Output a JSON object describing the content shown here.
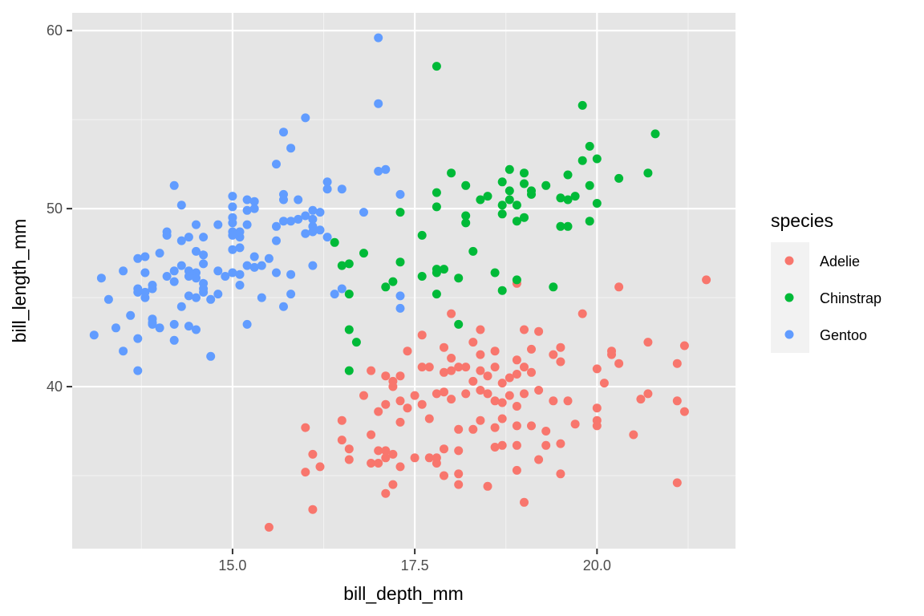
{
  "chart_data": {
    "type": "scatter",
    "title": "",
    "xlabel": "bill_depth_mm",
    "ylabel": "bill_length_mm",
    "xlim": [
      12.8,
      21.9
    ],
    "ylim": [
      30.9,
      61.0
    ],
    "x_ticks": [
      15.0,
      17.5,
      20.0
    ],
    "x_tick_labels": [
      "15.0",
      "17.5",
      "20.0"
    ],
    "y_ticks": [
      40,
      50,
      60
    ],
    "y_tick_labels": [
      "40",
      "50",
      "60"
    ],
    "x_minor_ticks": [
      13.75,
      16.25,
      18.75,
      21.25
    ],
    "y_minor_ticks": [
      35,
      45,
      55
    ],
    "grid": true,
    "panel_background": "#e5e5e5",
    "legend": {
      "title": "species",
      "position": "right"
    },
    "series": [
      {
        "name": "Adelie",
        "color": "#f8766d",
        "points": [
          [
            15.5,
            32.1
          ],
          [
            16.1,
            33.1
          ],
          [
            19.0,
            33.5
          ],
          [
            17.1,
            34.0
          ],
          [
            17.2,
            34.5
          ],
          [
            18.5,
            34.4
          ],
          [
            18.1,
            34.5
          ],
          [
            21.1,
            34.6
          ],
          [
            17.9,
            35.0
          ],
          [
            18.9,
            35.3
          ],
          [
            16.0,
            35.2
          ],
          [
            16.2,
            35.5
          ],
          [
            17.3,
            35.5
          ],
          [
            18.1,
            35.1
          ],
          [
            19.5,
            35.1
          ],
          [
            17.8,
            35.7
          ],
          [
            16.6,
            35.9
          ],
          [
            16.9,
            35.7
          ],
          [
            17.0,
            35.7
          ],
          [
            17.1,
            36.0
          ],
          [
            17.2,
            36.2
          ],
          [
            17.5,
            36.0
          ],
          [
            17.7,
            36.0
          ],
          [
            17.8,
            36.0
          ],
          [
            19.2,
            35.9
          ],
          [
            16.6,
            36.5
          ],
          [
            16.5,
            37.0
          ],
          [
            17.0,
            36.4
          ],
          [
            17.1,
            36.4
          ],
          [
            17.9,
            36.5
          ],
          [
            18.1,
            36.4
          ],
          [
            18.6,
            36.6
          ],
          [
            18.7,
            36.7
          ],
          [
            18.9,
            36.7
          ],
          [
            19.3,
            36.7
          ],
          [
            19.5,
            36.8
          ],
          [
            20.5,
            37.3
          ],
          [
            16.1,
            36.2
          ],
          [
            16.5,
            38.1
          ],
          [
            16.9,
            37.3
          ],
          [
            17.3,
            38.0
          ],
          [
            17.0,
            38.6
          ],
          [
            17.4,
            38.8
          ],
          [
            17.6,
            39.0
          ],
          [
            17.7,
            38.2
          ],
          [
            18.1,
            37.6
          ],
          [
            18.3,
            37.6
          ],
          [
            18.4,
            38.1
          ],
          [
            18.6,
            37.7
          ],
          [
            18.7,
            38.2
          ],
          [
            18.9,
            37.8
          ],
          [
            19.1,
            37.8
          ],
          [
            19.3,
            37.5
          ],
          [
            19.7,
            37.9
          ],
          [
            20.0,
            38.1
          ],
          [
            20.0,
            37.8
          ],
          [
            16.0,
            37.7
          ],
          [
            16.8,
            39.5
          ],
          [
            17.1,
            39.0
          ],
          [
            17.2,
            40.0
          ],
          [
            17.3,
            39.2
          ],
          [
            17.5,
            39.5
          ],
          [
            17.8,
            39.6
          ],
          [
            17.9,
            39.7
          ],
          [
            18.0,
            39.3
          ],
          [
            18.2,
            39.6
          ],
          [
            18.4,
            39.8
          ],
          [
            18.5,
            39.6
          ],
          [
            18.6,
            39.2
          ],
          [
            18.7,
            39.1
          ],
          [
            18.8,
            39.5
          ],
          [
            18.9,
            38.9
          ],
          [
            19.0,
            39.6
          ],
          [
            19.2,
            39.8
          ],
          [
            19.4,
            39.2
          ],
          [
            19.6,
            39.2
          ],
          [
            20.0,
            38.8
          ],
          [
            20.6,
            39.3
          ],
          [
            20.7,
            39.6
          ],
          [
            21.1,
            39.2
          ],
          [
            21.2,
            38.6
          ],
          [
            16.9,
            40.9
          ],
          [
            17.1,
            40.6
          ],
          [
            17.2,
            40.3
          ],
          [
            17.3,
            40.6
          ],
          [
            17.6,
            41.1
          ],
          [
            17.7,
            41.1
          ],
          [
            17.9,
            40.8
          ],
          [
            18.0,
            40.9
          ],
          [
            18.1,
            41.1
          ],
          [
            18.2,
            41.1
          ],
          [
            18.3,
            40.3
          ],
          [
            18.4,
            40.9
          ],
          [
            18.5,
            40.6
          ],
          [
            18.6,
            41.1
          ],
          [
            18.7,
            40.2
          ],
          [
            18.8,
            40.5
          ],
          [
            18.9,
            40.7
          ],
          [
            19.0,
            41.1
          ],
          [
            19.1,
            40.8
          ],
          [
            19.5,
            41.4
          ],
          [
            20.0,
            41.0
          ],
          [
            20.1,
            40.2
          ],
          [
            20.2,
            41.8
          ],
          [
            20.3,
            41.3
          ],
          [
            21.1,
            41.3
          ],
          [
            17.4,
            42.0
          ],
          [
            17.9,
            42.2
          ],
          [
            18.0,
            41.6
          ],
          [
            18.3,
            42.5
          ],
          [
            18.4,
            41.8
          ],
          [
            18.6,
            42.0
          ],
          [
            18.9,
            41.5
          ],
          [
            19.1,
            42.1
          ],
          [
            19.4,
            41.8
          ],
          [
            19.5,
            42.2
          ],
          [
            20.2,
            42.0
          ],
          [
            20.7,
            42.5
          ],
          [
            21.2,
            42.3
          ],
          [
            18.0,
            44.1
          ],
          [
            18.4,
            43.2
          ],
          [
            19.0,
            43.2
          ],
          [
            19.2,
            43.1
          ],
          [
            19.8,
            44.1
          ],
          [
            18.9,
            45.8
          ],
          [
            17.6,
            42.9
          ],
          [
            20.3,
            45.6
          ],
          [
            21.5,
            46.0
          ]
        ]
      },
      {
        "name": "Chinstrap",
        "color": "#00ba38",
        "points": [
          [
            17.8,
            58.0
          ],
          [
            19.8,
            55.8
          ],
          [
            20.8,
            54.2
          ],
          [
            19.9,
            53.5
          ],
          [
            19.8,
            52.7
          ],
          [
            20.0,
            52.8
          ],
          [
            20.7,
            52.0
          ],
          [
            20.3,
            51.7
          ],
          [
            18.8,
            52.2
          ],
          [
            19.0,
            52.0
          ],
          [
            18.7,
            51.5
          ],
          [
            18.2,
            51.3
          ],
          [
            18.0,
            52.0
          ],
          [
            19.0,
            51.4
          ],
          [
            19.1,
            51.0
          ],
          [
            19.3,
            51.3
          ],
          [
            19.6,
            51.9
          ],
          [
            19.9,
            51.3
          ],
          [
            19.7,
            50.7
          ],
          [
            19.5,
            50.6
          ],
          [
            19.6,
            50.5
          ],
          [
            19.1,
            50.8
          ],
          [
            18.9,
            50.2
          ],
          [
            18.8,
            50.5
          ],
          [
            18.7,
            50.2
          ],
          [
            18.5,
            50.7
          ],
          [
            18.4,
            50.5
          ],
          [
            17.8,
            50.9
          ],
          [
            17.8,
            50.1
          ],
          [
            18.2,
            49.6
          ],
          [
            18.2,
            49.2
          ],
          [
            18.7,
            49.7
          ],
          [
            18.9,
            49.3
          ],
          [
            19.0,
            49.5
          ],
          [
            17.3,
            49.8
          ],
          [
            19.5,
            49.0
          ],
          [
            19.6,
            49.0
          ],
          [
            19.9,
            49.3
          ],
          [
            20.0,
            50.3
          ],
          [
            18.8,
            51.0
          ],
          [
            17.6,
            48.5
          ],
          [
            16.4,
            48.1
          ],
          [
            16.8,
            47.5
          ],
          [
            17.3,
            47.0
          ],
          [
            16.5,
            46.8
          ],
          [
            16.6,
            46.9
          ],
          [
            16.6,
            45.2
          ],
          [
            17.1,
            45.6
          ],
          [
            17.2,
            45.9
          ],
          [
            17.6,
            46.2
          ],
          [
            17.8,
            46.6
          ],
          [
            17.9,
            46.6
          ],
          [
            17.8,
            46.4
          ],
          [
            18.1,
            46.1
          ],
          [
            18.3,
            47.6
          ],
          [
            18.6,
            46.4
          ],
          [
            18.9,
            46.0
          ],
          [
            18.7,
            45.4
          ],
          [
            17.8,
            45.2
          ],
          [
            16.6,
            43.2
          ],
          [
            16.7,
            42.5
          ],
          [
            16.6,
            40.9
          ],
          [
            18.1,
            43.5
          ],
          [
            19.4,
            45.6
          ]
        ]
      },
      {
        "name": "Gentoo",
        "color": "#619cff",
        "points": [
          [
            13.1,
            42.9
          ],
          [
            13.3,
            44.9
          ],
          [
            13.2,
            46.1
          ],
          [
            13.4,
            43.3
          ],
          [
            13.5,
            46.5
          ],
          [
            13.5,
            42.0
          ],
          [
            13.6,
            44.0
          ],
          [
            13.7,
            45.5
          ],
          [
            13.7,
            45.3
          ],
          [
            13.7,
            42.7
          ],
          [
            13.7,
            47.2
          ],
          [
            13.7,
            40.9
          ],
          [
            13.8,
            45.3
          ],
          [
            13.8,
            47.3
          ],
          [
            13.8,
            46.4
          ],
          [
            13.8,
            45.0
          ],
          [
            13.9,
            45.5
          ],
          [
            13.9,
            45.7
          ],
          [
            13.9,
            43.8
          ],
          [
            13.9,
            43.6
          ],
          [
            13.9,
            43.5
          ],
          [
            14.0,
            43.3
          ],
          [
            14.0,
            47.5
          ],
          [
            14.1,
            46.2
          ],
          [
            14.1,
            48.7
          ],
          [
            14.1,
            48.5
          ],
          [
            14.2,
            45.9
          ],
          [
            14.2,
            46.5
          ],
          [
            14.2,
            51.3
          ],
          [
            14.2,
            43.5
          ],
          [
            14.2,
            42.6
          ],
          [
            14.3,
            46.8
          ],
          [
            14.3,
            48.2
          ],
          [
            14.3,
            50.2
          ],
          [
            14.3,
            44.5
          ],
          [
            14.4,
            48.4
          ],
          [
            14.4,
            46.5
          ],
          [
            14.4,
            46.2
          ],
          [
            14.4,
            45.1
          ],
          [
            14.4,
            43.4
          ],
          [
            14.5,
            47.6
          ],
          [
            14.5,
            46.4
          ],
          [
            14.5,
            45.0
          ],
          [
            14.5,
            49.1
          ],
          [
            14.5,
            43.2
          ],
          [
            14.5,
            46.1
          ],
          [
            14.6,
            45.8
          ],
          [
            14.6,
            45.3
          ],
          [
            14.6,
            47.4
          ],
          [
            14.6,
            48.4
          ],
          [
            14.6,
            46.9
          ],
          [
            14.6,
            45.5
          ],
          [
            14.7,
            44.9
          ],
          [
            14.7,
            41.7
          ],
          [
            14.8,
            45.2
          ],
          [
            14.8,
            49.1
          ],
          [
            14.8,
            46.5
          ],
          [
            14.9,
            46.2
          ],
          [
            15.0,
            48.7
          ],
          [
            15.0,
            50.1
          ],
          [
            15.0,
            49.5
          ],
          [
            15.0,
            48.5
          ],
          [
            15.0,
            47.7
          ],
          [
            15.0,
            46.4
          ],
          [
            15.0,
            50.7
          ],
          [
            15.0,
            49.2
          ],
          [
            15.1,
            46.3
          ],
          [
            15.1,
            48.4
          ],
          [
            15.1,
            47.8
          ],
          [
            15.1,
            48.7
          ],
          [
            15.1,
            45.7
          ],
          [
            15.2,
            50.5
          ],
          [
            15.2,
            49.9
          ],
          [
            15.2,
            49.1
          ],
          [
            15.2,
            46.8
          ],
          [
            15.2,
            43.5
          ],
          [
            15.3,
            50.4
          ],
          [
            15.3,
            50.0
          ],
          [
            15.3,
            47.3
          ],
          [
            15.3,
            46.7
          ],
          [
            15.4,
            46.8
          ],
          [
            15.4,
            45.0
          ],
          [
            15.5,
            47.2
          ],
          [
            15.6,
            49.0
          ],
          [
            15.6,
            48.2
          ],
          [
            15.6,
            46.4
          ],
          [
            15.6,
            52.5
          ],
          [
            15.7,
            50.8
          ],
          [
            15.7,
            50.5
          ],
          [
            15.7,
            49.3
          ],
          [
            15.7,
            54.3
          ],
          [
            15.7,
            44.5
          ],
          [
            15.8,
            49.3
          ],
          [
            15.8,
            53.4
          ],
          [
            15.8,
            46.3
          ],
          [
            15.8,
            45.2
          ],
          [
            15.9,
            50.5
          ],
          [
            15.9,
            49.4
          ],
          [
            16.0,
            49.6
          ],
          [
            16.0,
            48.6
          ],
          [
            16.0,
            55.1
          ],
          [
            16.1,
            49.9
          ],
          [
            16.1,
            49.4
          ],
          [
            16.1,
            49.0
          ],
          [
            16.1,
            48.7
          ],
          [
            16.1,
            46.8
          ],
          [
            16.2,
            49.8
          ],
          [
            16.2,
            48.8
          ],
          [
            16.3,
            51.5
          ],
          [
            16.3,
            51.1
          ],
          [
            16.3,
            48.4
          ],
          [
            16.4,
            45.2
          ],
          [
            16.5,
            51.1
          ],
          [
            16.5,
            45.5
          ],
          [
            16.8,
            49.8
          ],
          [
            17.0,
            59.6
          ],
          [
            17.0,
            55.9
          ],
          [
            17.0,
            52.1
          ],
          [
            17.1,
            52.2
          ],
          [
            17.3,
            50.8
          ],
          [
            17.3,
            44.4
          ],
          [
            17.3,
            45.1
          ]
        ]
      }
    ]
  }
}
